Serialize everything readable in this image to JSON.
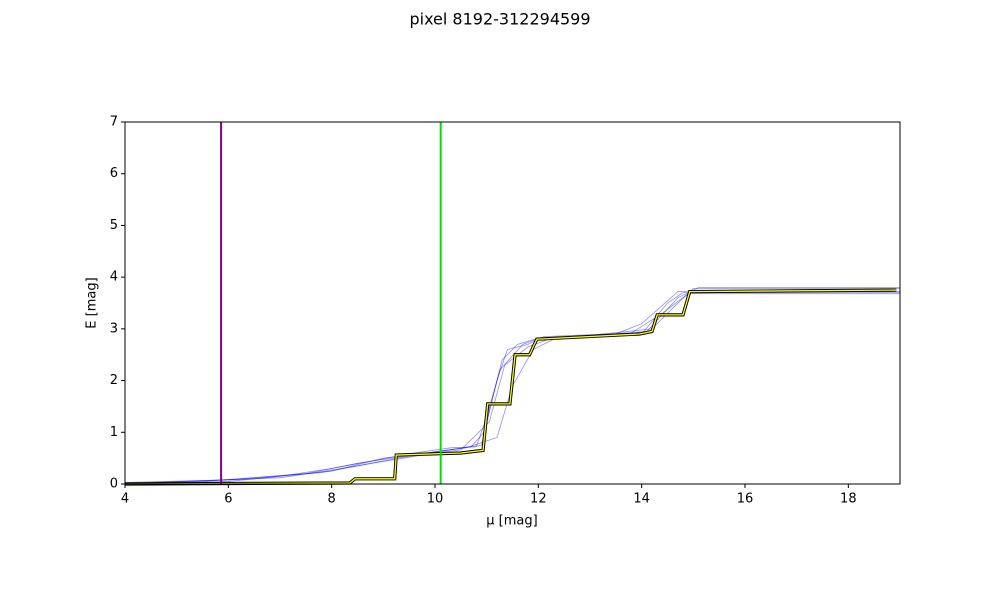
{
  "chart_data": {
    "type": "line",
    "title": "pixel 8192-312294599",
    "xlabel": "μ [mag]",
    "ylabel": "E [mag]",
    "xlim": [
      4,
      19
    ],
    "ylim": [
      0,
      7
    ],
    "xticks": [
      4,
      6,
      8,
      10,
      12,
      14,
      16,
      18
    ],
    "yticks": [
      0,
      1,
      2,
      3,
      4,
      5,
      6,
      7
    ],
    "vlines": [
      {
        "x": 5.86,
        "color": "#800080"
      },
      {
        "x": 10.11,
        "color": "#00e000"
      }
    ],
    "series": [
      {
        "color": "#0000ff",
        "x": [
          4,
          6,
          7,
          8,
          8.8,
          9.6,
          10.3,
          10.8,
          11.0,
          11.2,
          11.4,
          11.8,
          12,
          14,
          14.5,
          14.8,
          19
        ],
        "values": [
          0,
          0.05,
          0.15,
          0.3,
          0.45,
          0.6,
          0.7,
          0.72,
          1.3,
          2.0,
          2.6,
          2.7,
          2.8,
          2.9,
          3.5,
          3.7,
          3.7
        ]
      },
      {
        "color": "#0000ff",
        "x": [
          4,
          5.5,
          7.5,
          8.5,
          9.5,
          10.4,
          10.9,
          11.1,
          11.3,
          11.6,
          12.0,
          13.5,
          14.0,
          14.7,
          19
        ],
        "values": [
          0.02,
          0.05,
          0.2,
          0.4,
          0.55,
          0.68,
          0.75,
          1.6,
          2.4,
          2.7,
          2.82,
          2.9,
          3.1,
          3.72,
          3.72
        ]
      },
      {
        "color": "#0000ff",
        "x": [
          4,
          6.5,
          8,
          9,
          10,
          10.6,
          11.2,
          11.5,
          11.9,
          12.3,
          14.2,
          14.6,
          15.0,
          19
        ],
        "values": [
          0,
          0.1,
          0.25,
          0.5,
          0.62,
          0.7,
          0.9,
          1.9,
          2.6,
          2.8,
          3.0,
          3.4,
          3.78,
          3.78
        ]
      },
      {
        "color": "#0000ff",
        "x": [
          4,
          7,
          8.2,
          9.3,
          10.2,
          10.7,
          10.95,
          11.25,
          11.7,
          12.1,
          13.8,
          14.4,
          14.9,
          19
        ],
        "values": [
          0.01,
          0.12,
          0.3,
          0.5,
          0.65,
          0.72,
          1.0,
          2.2,
          2.7,
          2.85,
          2.92,
          3.3,
          3.68,
          3.68
        ]
      },
      {
        "color": "#0000ff",
        "x": [
          4,
          6,
          7.8,
          8.9,
          10.0,
          10.5,
          11.05,
          11.35,
          11.8,
          12.2,
          14.1,
          14.7,
          15.1,
          19
        ],
        "values": [
          0.03,
          0.08,
          0.22,
          0.42,
          0.6,
          0.66,
          1.2,
          2.3,
          2.65,
          2.8,
          2.95,
          3.6,
          3.8,
          3.8
        ]
      },
      {
        "color": "#ffff00",
        "outline": "#000000",
        "x": [
          4,
          8.35,
          8.45,
          9.22,
          9.25,
          10.5,
          10.93,
          11.02,
          11.45,
          11.55,
          11.83,
          11.97,
          13.96,
          14.2,
          14.3,
          14.8,
          14.93,
          18.93
        ],
        "values": [
          0,
          0.02,
          0.1,
          0.1,
          0.56,
          0.6,
          0.65,
          1.55,
          1.55,
          2.5,
          2.5,
          2.8,
          2.9,
          2.95,
          3.27,
          3.27,
          3.72,
          3.75
        ]
      }
    ]
  }
}
